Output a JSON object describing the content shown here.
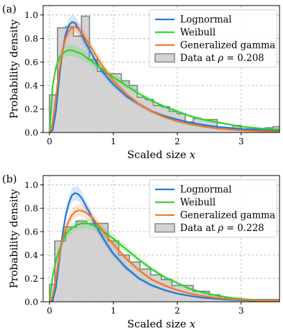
{
  "chart_data": [
    {
      "type": "line",
      "panel_label": "(a)",
      "xlabel": "Scaled size x",
      "xlabel_main": "Scaled size ",
      "xlabel_var": "x",
      "ylabel": "Probability density",
      "xlim": [
        -0.1,
        3.6
      ],
      "ylim": [
        0,
        1.08
      ],
      "xticks": [
        0,
        1,
        2,
        3
      ],
      "yticks": [
        0.0,
        0.2,
        0.4,
        0.6,
        0.8,
        1.0
      ],
      "ytick_labels": [
        "0.0",
        "0.2",
        "0.4",
        "0.6",
        "0.8",
        "1.0"
      ],
      "grid": true,
      "legend_position": "top-right",
      "histogram": {
        "name": "Data at ρ = 0.208",
        "legend_main": "Data at ",
        "legend_var": "ρ",
        "legend_value": " = 0.208",
        "bin_edges": [
          0,
          0.125,
          0.25,
          0.375,
          0.5,
          0.625,
          0.75,
          0.875,
          1.0,
          1.125,
          1.25,
          1.375,
          1.5,
          1.625,
          1.75,
          1.875,
          2.0,
          2.125,
          2.25,
          2.375,
          2.5,
          2.625,
          2.75,
          2.875,
          3.0,
          3.125,
          3.25,
          3.375,
          3.5,
          3.625
        ],
        "heights": [
          0.32,
          0.89,
          0.9,
          0.82,
          0.99,
          0.62,
          0.52,
          0.5,
          0.5,
          0.44,
          0.4,
          0.3,
          0.28,
          0.23,
          0.22,
          0.18,
          0.16,
          0.09,
          0.12,
          0.11,
          0.11,
          0.03,
          0.04,
          0.06,
          0.03,
          0.03,
          0.02,
          0.04,
          0.05
        ]
      },
      "series": [
        {
          "name": "Lognormal",
          "color": "#1f77d4",
          "x": [
            0,
            0.05,
            0.1,
            0.15,
            0.2,
            0.25,
            0.3,
            0.35,
            0.4,
            0.45,
            0.5,
            0.55,
            0.6,
            0.7,
            0.8,
            0.9,
            1.0,
            1.2,
            1.4,
            1.6,
            1.8,
            2.0,
            2.2,
            2.4,
            2.6,
            2.8,
            3.0,
            3.2,
            3.4,
            3.6
          ],
          "y": [
            0,
            0.02,
            0.18,
            0.45,
            0.68,
            0.83,
            0.91,
            0.94,
            0.93,
            0.89,
            0.84,
            0.78,
            0.73,
            0.63,
            0.54,
            0.47,
            0.41,
            0.31,
            0.24,
            0.18,
            0.14,
            0.11,
            0.085,
            0.065,
            0.05,
            0.04,
            0.03,
            0.024,
            0.018,
            0.014
          ]
        },
        {
          "name": "Weibull",
          "color": "#2ed02e",
          "x": [
            0,
            0.05,
            0.1,
            0.15,
            0.2,
            0.25,
            0.3,
            0.35,
            0.4,
            0.5,
            0.6,
            0.7,
            0.8,
            0.9,
            1.0,
            1.2,
            1.4,
            1.6,
            1.8,
            2.0,
            2.2,
            2.4,
            2.6,
            2.8,
            3.0,
            3.2,
            3.4,
            3.6
          ],
          "y": [
            0,
            0.4,
            0.55,
            0.63,
            0.67,
            0.69,
            0.7,
            0.7,
            0.69,
            0.67,
            0.63,
            0.59,
            0.55,
            0.51,
            0.47,
            0.4,
            0.33,
            0.27,
            0.22,
            0.18,
            0.14,
            0.11,
            0.09,
            0.07,
            0.05,
            0.04,
            0.03,
            0.025
          ]
        },
        {
          "name": "Generalized gamma",
          "color": "#f07828",
          "x": [
            0,
            0.05,
            0.1,
            0.15,
            0.2,
            0.25,
            0.3,
            0.35,
            0.4,
            0.45,
            0.5,
            0.55,
            0.6,
            0.7,
            0.8,
            0.9,
            1.0,
            1.2,
            1.4,
            1.6,
            1.8,
            2.0,
            2.2,
            2.4,
            2.6,
            2.8,
            3.0,
            3.2,
            3.4,
            3.6
          ],
          "y": [
            0,
            0.08,
            0.3,
            0.52,
            0.69,
            0.8,
            0.86,
            0.89,
            0.9,
            0.88,
            0.85,
            0.81,
            0.77,
            0.68,
            0.59,
            0.51,
            0.44,
            0.33,
            0.24,
            0.18,
            0.13,
            0.095,
            0.07,
            0.05,
            0.036,
            0.026,
            0.018,
            0.013,
            0.009,
            0.006
          ]
        }
      ]
    },
    {
      "type": "line",
      "panel_label": "(b)",
      "xlabel": "Scaled size x",
      "xlabel_main": "Scaled size ",
      "xlabel_var": "x",
      "ylabel": "Probability density",
      "xlim": [
        -0.1,
        3.6
      ],
      "ylim": [
        0,
        1.08
      ],
      "xticks": [
        0,
        1,
        2,
        3
      ],
      "yticks": [
        0.0,
        0.2,
        0.4,
        0.6,
        0.8,
        1.0
      ],
      "ytick_labels": [
        "0.0",
        "0.2",
        "0.4",
        "0.6",
        "0.8",
        "1.0"
      ],
      "grid": true,
      "legend_position": "top-right",
      "histogram": {
        "name": "Data at ρ = 0.228",
        "legend_main": "Data at ",
        "legend_var": "ρ",
        "legend_value": " = 0.228",
        "bin_edges": [
          0,
          0.083,
          0.25,
          0.417,
          0.583,
          0.75,
          0.917,
          1.083,
          1.25,
          1.417,
          1.583,
          1.75,
          1.917,
          2.25,
          2.5,
          2.667,
          3.0,
          3.6
        ],
        "heights": [
          0.15,
          0.52,
          0.64,
          0.69,
          0.67,
          0.67,
          0.52,
          0.4,
          0.34,
          0.28,
          0.23,
          0.19,
          0.14,
          0.09,
          0.06,
          0.03,
          0.02
        ]
      },
      "series": [
        {
          "name": "Lognormal",
          "color": "#1f77d4",
          "x": [
            0,
            0.05,
            0.1,
            0.15,
            0.2,
            0.25,
            0.3,
            0.35,
            0.4,
            0.45,
            0.5,
            0.55,
            0.6,
            0.7,
            0.8,
            0.9,
            1.0,
            1.2,
            1.4,
            1.6,
            1.8,
            2.0,
            2.2,
            2.4,
            2.6,
            2.8,
            3.0,
            3.2,
            3.4,
            3.6
          ],
          "y": [
            0,
            0.01,
            0.12,
            0.34,
            0.56,
            0.73,
            0.84,
            0.91,
            0.93,
            0.92,
            0.89,
            0.84,
            0.79,
            0.68,
            0.58,
            0.49,
            0.41,
            0.29,
            0.2,
            0.14,
            0.1,
            0.07,
            0.05,
            0.035,
            0.025,
            0.018,
            0.013,
            0.009,
            0.006,
            0.004
          ]
        },
        {
          "name": "Weibull",
          "color": "#2ed02e",
          "x": [
            0,
            0.05,
            0.1,
            0.15,
            0.2,
            0.25,
            0.3,
            0.4,
            0.5,
            0.6,
            0.7,
            0.8,
            0.9,
            1.0,
            1.2,
            1.4,
            1.6,
            1.8,
            2.0,
            2.2,
            2.4,
            2.6,
            2.8,
            3.0,
            3.2,
            3.4,
            3.6
          ],
          "y": [
            0,
            0.22,
            0.35,
            0.44,
            0.51,
            0.57,
            0.61,
            0.65,
            0.67,
            0.67,
            0.65,
            0.62,
            0.58,
            0.54,
            0.45,
            0.36,
            0.28,
            0.21,
            0.16,
            0.11,
            0.08,
            0.055,
            0.037,
            0.025,
            0.016,
            0.01,
            0.007
          ]
        },
        {
          "name": "Generalized gamma",
          "color": "#f07828",
          "x": [
            0,
            0.05,
            0.1,
            0.15,
            0.2,
            0.25,
            0.3,
            0.35,
            0.4,
            0.45,
            0.5,
            0.55,
            0.6,
            0.65,
            0.7,
            0.8,
            0.9,
            1.0,
            1.2,
            1.4,
            1.6,
            1.8,
            2.0,
            2.2,
            2.4,
            2.6,
            2.8,
            3.0,
            3.2,
            3.4,
            3.6
          ],
          "y": [
            0,
            0.05,
            0.2,
            0.38,
            0.52,
            0.62,
            0.69,
            0.74,
            0.77,
            0.78,
            0.78,
            0.77,
            0.75,
            0.73,
            0.7,
            0.63,
            0.56,
            0.49,
            0.37,
            0.27,
            0.19,
            0.14,
            0.1,
            0.07,
            0.05,
            0.035,
            0.025,
            0.017,
            0.012,
            0.008,
            0.006
          ]
        }
      ]
    }
  ]
}
